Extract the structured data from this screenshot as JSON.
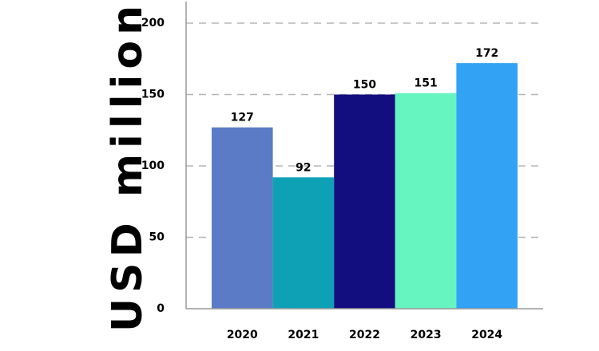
{
  "chart_data": {
    "type": "bar",
    "title": "",
    "xlabel": "",
    "ylabel": "USD million",
    "categories": [
      "2020",
      "2021",
      "2022",
      "2023",
      "2024"
    ],
    "values": [
      127,
      92,
      150,
      151,
      172
    ],
    "data_labels": [
      "127",
      "92",
      "150",
      "151",
      "172"
    ],
    "colors": [
      "#5b7bc6",
      "#0ea1b5",
      "#130e80",
      "#66f5c0",
      "#32a2f4"
    ],
    "ylim": [
      0,
      200
    ],
    "yticks": [
      0,
      50,
      100,
      150,
      200
    ],
    "ytick_labels": [
      "0",
      "50",
      "100",
      "150",
      "200"
    ],
    "grid": true,
    "legend": "none"
  }
}
